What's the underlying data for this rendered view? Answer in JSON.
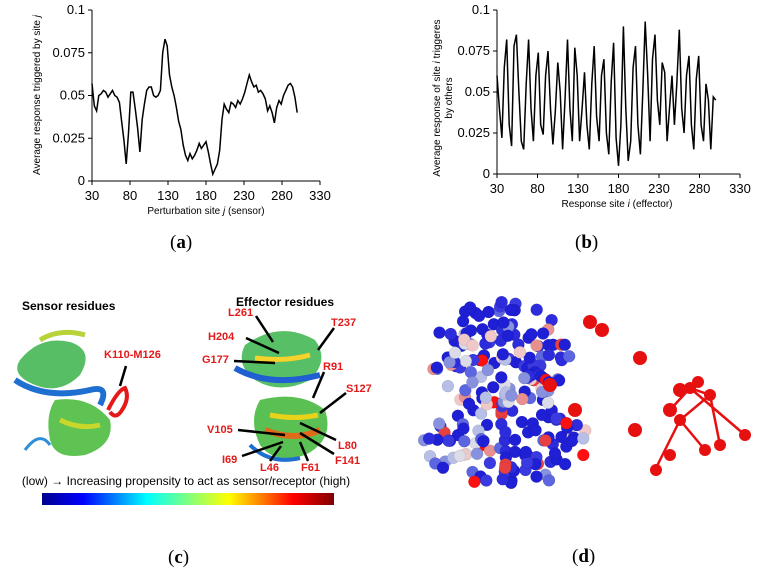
{
  "figure": {
    "panels": [
      {
        "label_open": "(",
        "letter": "a",
        "label_close": ")"
      },
      {
        "label_open": "(",
        "letter": "b",
        "label_close": ")"
      },
      {
        "label_open": "(",
        "letter": "c",
        "label_close": ")"
      },
      {
        "label_open": "(",
        "letter": "d",
        "label_close": ")"
      }
    ]
  },
  "chart_data": [
    {
      "type": "line",
      "id": "a",
      "ylabel_parts": [
        "Average response triggered by site ",
        "j"
      ],
      "xlabel_parts": [
        "Perturbation site ",
        "j",
        " (sensor)"
      ],
      "xlim": [
        30,
        330
      ],
      "ylim": [
        0,
        0.1
      ],
      "xticks": [
        "30",
        "80",
        "130",
        "180",
        "230",
        "280",
        "330"
      ],
      "yticks": [
        "0",
        "0.025",
        "0.05",
        "0.075",
        "0.1"
      ],
      "x": [
        30,
        33,
        36,
        39,
        42,
        45,
        48,
        51,
        54,
        57,
        60,
        63,
        66,
        69,
        72,
        75,
        78,
        81,
        84,
        87,
        90,
        93,
        96,
        99,
        102,
        105,
        108,
        111,
        114,
        117,
        120,
        123,
        126,
        129,
        132,
        135,
        138,
        141,
        144,
        147,
        150,
        153,
        156,
        159,
        162,
        165,
        168,
        171,
        174,
        177,
        180,
        183,
        186,
        189,
        192,
        195,
        198,
        201,
        204,
        207,
        210,
        213,
        216,
        219,
        222,
        225,
        228,
        231,
        234,
        237,
        240,
        243,
        246,
        249,
        252,
        255,
        258,
        261,
        264,
        267,
        270,
        273,
        276,
        279,
        282,
        285,
        288,
        291,
        294,
        297,
        300
      ],
      "values": [
        0.057,
        0.044,
        0.041,
        0.05,
        0.051,
        0.053,
        0.052,
        0.049,
        0.051,
        0.053,
        0.05,
        0.049,
        0.046,
        0.035,
        0.024,
        0.01,
        0.028,
        0.052,
        0.052,
        0.042,
        0.031,
        0.017,
        0.036,
        0.045,
        0.053,
        0.055,
        0.055,
        0.05,
        0.049,
        0.05,
        0.053,
        0.075,
        0.083,
        0.079,
        0.062,
        0.055,
        0.05,
        0.043,
        0.035,
        0.03,
        0.021,
        0.015,
        0.012,
        0.016,
        0.013,
        0.015,
        0.018,
        0.022,
        0.019,
        0.021,
        0.023,
        0.017,
        0.01,
        0.004,
        0.007,
        0.01,
        0.018,
        0.036,
        0.045,
        0.042,
        0.04,
        0.046,
        0.045,
        0.043,
        0.047,
        0.045,
        0.048,
        0.052,
        0.057,
        0.062,
        0.058,
        0.055,
        0.056,
        0.052,
        0.053,
        0.051,
        0.048,
        0.041,
        0.044,
        0.04,
        0.034,
        0.043,
        0.047,
        0.045,
        0.05,
        0.053,
        0.056,
        0.057,
        0.055,
        0.049,
        0.04
      ]
    },
    {
      "type": "line",
      "id": "b",
      "ylabel_parts": [
        "Average response  of site ",
        "i",
        " triggeres",
        "by others"
      ],
      "xlabel_parts": [
        "Response site ",
        "i",
        " (effector)"
      ],
      "xlim": [
        30,
        330
      ],
      "ylim": [
        0,
        0.1
      ],
      "xticks": [
        "30",
        "80",
        "130",
        "180",
        "230",
        "280",
        "330"
      ],
      "yticks": [
        "0",
        "0.025",
        "0.05",
        "0.075",
        "0.1"
      ],
      "x": [
        30,
        33,
        36,
        39,
        42,
        45,
        48,
        51,
        54,
        57,
        60,
        63,
        66,
        69,
        72,
        75,
        78,
        81,
        84,
        87,
        90,
        93,
        96,
        99,
        102,
        105,
        108,
        111,
        114,
        117,
        120,
        123,
        126,
        129,
        132,
        135,
        138,
        141,
        144,
        147,
        150,
        153,
        156,
        159,
        162,
        165,
        168,
        171,
        174,
        177,
        180,
        183,
        186,
        189,
        192,
        195,
        198,
        201,
        204,
        207,
        210,
        213,
        216,
        219,
        222,
        225,
        228,
        231,
        234,
        237,
        240,
        243,
        246,
        249,
        252,
        255,
        258,
        261,
        264,
        267,
        270,
        273,
        276,
        279,
        282,
        285,
        288,
        291,
        294,
        297,
        300
      ],
      "values": [
        0.06,
        0.04,
        0.022,
        0.065,
        0.082,
        0.03,
        0.017,
        0.078,
        0.085,
        0.05,
        0.02,
        0.015,
        0.055,
        0.082,
        0.04,
        0.02,
        0.06,
        0.074,
        0.03,
        0.024,
        0.06,
        0.075,
        0.04,
        0.018,
        0.038,
        0.068,
        0.05,
        0.015,
        0.045,
        0.082,
        0.04,
        0.02,
        0.077,
        0.06,
        0.02,
        0.04,
        0.062,
        0.03,
        0.015,
        0.055,
        0.078,
        0.035,
        0.02,
        0.06,
        0.07,
        0.025,
        0.012,
        0.056,
        0.08,
        0.022,
        0.005,
        0.03,
        0.09,
        0.04,
        0.008,
        0.02,
        0.065,
        0.078,
        0.03,
        0.012,
        0.05,
        0.093,
        0.06,
        0.02,
        0.07,
        0.085,
        0.045,
        0.03,
        0.068,
        0.062,
        0.02,
        0.04,
        0.06,
        0.03,
        0.055,
        0.088,
        0.04,
        0.025,
        0.06,
        0.072,
        0.03,
        0.015,
        0.058,
        0.072,
        0.03,
        0.02,
        0.055,
        0.045,
        0.015,
        0.047,
        0.045
      ]
    }
  ],
  "panel_c": {
    "sensor_title": "Sensor residues",
    "effector_title": "Effector residues",
    "sensor_label": "K110-M126",
    "effector_labels": [
      "L261",
      "H204",
      "G177",
      "T237",
      "R91",
      "S127",
      "V105",
      "L80",
      "I69",
      "F141",
      "L46",
      "F61"
    ],
    "scale_text": "(low) → Increasing propensity to act as sensor/receptor (high)",
    "colors": {
      "red": "#e3191a"
    }
  }
}
